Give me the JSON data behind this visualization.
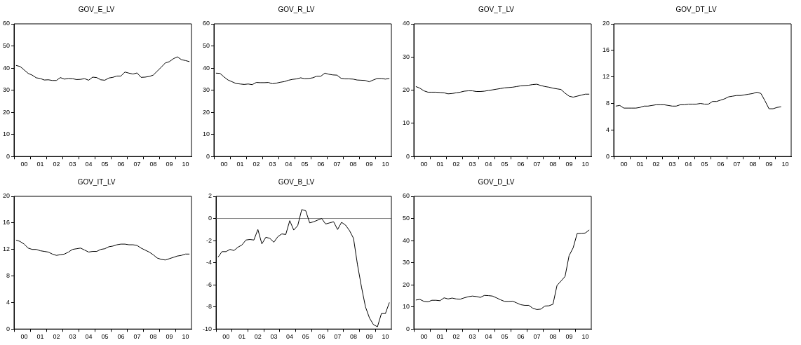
{
  "chart_data": [
    {
      "type": "line",
      "title": "GOV_E_LV",
      "color": "#000000",
      "marker": "none",
      "ylim": [
        0,
        60
      ],
      "yticks": [
        0,
        10,
        20,
        30,
        40,
        50,
        60
      ],
      "categories": [
        null,
        null,
        "00",
        null,
        null,
        null,
        "01",
        null,
        null,
        null,
        "02",
        null,
        null,
        null,
        "03",
        null,
        null,
        null,
        "04",
        null,
        null,
        null,
        "05",
        null,
        null,
        null,
        "06",
        null,
        null,
        null,
        "07",
        null,
        null,
        null,
        "08",
        null,
        null,
        null,
        "09",
        null,
        null,
        null,
        "10",
        null
      ],
      "values": [
        41.2,
        40.7,
        39.2,
        37.6,
        36.8,
        35.6,
        35.3,
        34.6,
        34.7,
        34.4,
        34.4,
        35.7,
        35.0,
        35.3,
        35.2,
        34.8,
        34.9,
        35.2,
        34.5,
        35.9,
        35.7,
        34.7,
        34.5,
        35.5,
        35.8,
        36.4,
        36.4,
        38.2,
        37.7,
        37.3,
        37.8,
        35.8,
        35.9,
        36.2,
        36.8,
        38.6,
        40.4,
        42.3,
        42.9,
        44.2,
        45.1,
        43.8,
        43.4,
        42.9
      ]
    },
    {
      "type": "line",
      "title": "GOV_R_LV",
      "color": "#000000",
      "marker": "none",
      "ylim": [
        0,
        60
      ],
      "yticks": [
        0,
        10,
        20,
        30,
        40,
        50,
        60
      ],
      "categories": [
        null,
        null,
        "00",
        null,
        null,
        null,
        "01",
        null,
        null,
        null,
        "02",
        null,
        null,
        null,
        "03",
        null,
        null,
        null,
        "04",
        null,
        null,
        null,
        "05",
        null,
        null,
        null,
        "06",
        null,
        null,
        null,
        "07",
        null,
        null,
        null,
        "08",
        null,
        null,
        null,
        "09",
        null,
        null,
        null,
        "10",
        null
      ],
      "values": [
        37.7,
        37.6,
        36.0,
        34.6,
        33.8,
        33.0,
        32.8,
        32.6,
        32.8,
        32.5,
        33.5,
        33.4,
        33.4,
        33.5,
        32.9,
        33.2,
        33.6,
        33.9,
        34.5,
        34.9,
        35.1,
        35.6,
        35.2,
        35.3,
        35.6,
        36.3,
        36.3,
        37.7,
        37.2,
        36.9,
        36.8,
        35.4,
        35.1,
        35.1,
        35.0,
        34.6,
        34.5,
        34.4,
        33.8,
        34.6,
        35.3,
        35.3,
        35.0,
        35.3
      ]
    },
    {
      "type": "line",
      "title": "GOV_T_LV",
      "color": "#000000",
      "marker": "none",
      "ylim": [
        0,
        40
      ],
      "yticks": [
        0,
        10,
        20,
        30,
        40
      ],
      "categories": [
        null,
        null,
        "00",
        null,
        null,
        null,
        "01",
        null,
        null,
        null,
        "02",
        null,
        null,
        null,
        "03",
        null,
        null,
        null,
        "04",
        null,
        null,
        null,
        "05",
        null,
        null,
        null,
        "06",
        null,
        null,
        null,
        "07",
        null,
        null,
        null,
        "08",
        null,
        null,
        null,
        "09",
        null,
        null,
        null,
        "10",
        null
      ],
      "values": [
        21.1,
        20.6,
        19.8,
        19.4,
        19.4,
        19.4,
        19.3,
        19.2,
        18.9,
        19.0,
        19.2,
        19.4,
        19.7,
        19.8,
        19.8,
        19.6,
        19.6,
        19.7,
        19.9,
        20.1,
        20.3,
        20.5,
        20.7,
        20.8,
        20.9,
        21.1,
        21.3,
        21.4,
        21.5,
        21.7,
        21.8,
        21.4,
        21.1,
        20.9,
        20.6,
        20.4,
        20.2,
        19.1,
        18.2,
        17.9,
        18.2,
        18.5,
        18.8,
        18.8
      ]
    },
    {
      "type": "line",
      "title": "GOV_DT_LV",
      "color": "#000000",
      "marker": "none",
      "ylim": [
        0,
        20
      ],
      "yticks": [
        0,
        4,
        8,
        12,
        16,
        20
      ],
      "categories": [
        null,
        null,
        "00",
        null,
        null,
        null,
        "01",
        null,
        null,
        null,
        "02",
        null,
        null,
        null,
        "03",
        null,
        null,
        null,
        "04",
        null,
        null,
        null,
        "05",
        null,
        null,
        null,
        "06",
        null,
        null,
        null,
        "07",
        null,
        null,
        null,
        "08",
        null,
        null,
        null,
        "09",
        null,
        null,
        null,
        "10",
        null
      ],
      "values": [
        7.6,
        7.7,
        7.3,
        7.3,
        7.3,
        7.3,
        7.4,
        7.6,
        7.6,
        7.7,
        7.8,
        7.8,
        7.8,
        7.7,
        7.6,
        7.6,
        7.8,
        7.8,
        7.9,
        7.9,
        7.9,
        8.0,
        7.9,
        7.9,
        8.3,
        8.3,
        8.5,
        8.7,
        9.0,
        9.1,
        9.2,
        9.2,
        9.3,
        9.4,
        9.5,
        9.7,
        9.5,
        8.4,
        7.2,
        7.2,
        7.4,
        7.5,
        null,
        null
      ]
    },
    {
      "type": "line",
      "title": "GOV_IT_LV",
      "color": "#000000",
      "marker": "none",
      "ylim": [
        0,
        20
      ],
      "yticks": [
        0,
        4,
        8,
        12,
        16,
        20
      ],
      "categories": [
        null,
        null,
        "00",
        null,
        null,
        null,
        "01",
        null,
        null,
        null,
        "02",
        null,
        null,
        null,
        "03",
        null,
        null,
        null,
        "04",
        null,
        null,
        null,
        "05",
        null,
        null,
        null,
        "06",
        null,
        null,
        null,
        "07",
        null,
        null,
        null,
        "08",
        null,
        null,
        null,
        "09",
        null,
        null,
        null,
        "10",
        null
      ],
      "values": [
        13.4,
        13.2,
        12.8,
        12.2,
        12.0,
        12.0,
        11.8,
        11.7,
        11.6,
        11.3,
        11.1,
        11.2,
        11.3,
        11.6,
        12.0,
        12.1,
        12.2,
        11.9,
        11.6,
        11.7,
        11.7,
        12.0,
        12.1,
        12.4,
        12.5,
        12.7,
        12.8,
        12.8,
        12.7,
        12.7,
        12.6,
        12.2,
        11.9,
        11.6,
        11.2,
        10.7,
        10.5,
        10.4,
        10.6,
        10.8,
        11.0,
        11.1,
        11.3,
        11.3
      ]
    },
    {
      "type": "line",
      "title": "GOV_B_LV",
      "color": "#000000",
      "marker": "none",
      "ylim": [
        -10,
        2
      ],
      "yticks": [
        -10,
        -8,
        -6,
        -4,
        -2,
        0,
        2
      ],
      "ref_lines": [
        {
          "axis": "y",
          "value": 0,
          "color": "#808080"
        }
      ],
      "categories": [
        null,
        null,
        "00",
        null,
        null,
        null,
        "01",
        null,
        null,
        null,
        "02",
        null,
        null,
        null,
        "03",
        null,
        null,
        null,
        "04",
        null,
        null,
        null,
        "05",
        null,
        null,
        null,
        "06",
        null,
        null,
        null,
        "07",
        null,
        null,
        null,
        "08",
        null,
        null,
        null,
        "09",
        null,
        null,
        null,
        "10",
        null
      ],
      "values": [
        -3.5,
        -3.0,
        -3.0,
        -2.8,
        -2.9,
        -2.6,
        -2.4,
        -1.95,
        -1.9,
        -1.95,
        -1.0,
        -2.3,
        -1.7,
        -1.8,
        -2.15,
        -1.65,
        -1.4,
        -1.45,
        -0.2,
        -1.05,
        -0.65,
        0.8,
        0.7,
        -0.4,
        -0.3,
        -0.15,
        0.0,
        -0.5,
        -0.4,
        -0.3,
        -1.0,
        -0.35,
        -0.6,
        -1.1,
        -1.8,
        -4.2,
        -6.2,
        -8.0,
        -9.0,
        -9.6,
        -9.8,
        -8.6,
        -8.6,
        -7.6
      ]
    },
    {
      "type": "line",
      "title": "GOV_D_LV",
      "color": "#000000",
      "marker": "none",
      "ylim": [
        0,
        60
      ],
      "yticks": [
        0,
        10,
        20,
        30,
        40,
        50,
        60
      ],
      "categories": [
        null,
        null,
        "00",
        null,
        null,
        null,
        "01",
        null,
        null,
        null,
        "02",
        null,
        null,
        null,
        "03",
        null,
        null,
        null,
        "04",
        null,
        null,
        null,
        "05",
        null,
        null,
        null,
        "06",
        null,
        null,
        null,
        "07",
        null,
        null,
        null,
        "08",
        null,
        null,
        null,
        "09",
        null,
        null,
        null,
        "10",
        null
      ],
      "values": [
        13.1,
        13.4,
        12.5,
        12.3,
        13.0,
        13.0,
        12.8,
        14.1,
        13.6,
        14.0,
        13.6,
        13.5,
        14.1,
        14.6,
        14.9,
        14.7,
        14.3,
        15.2,
        15.1,
        14.9,
        14.1,
        13.2,
        12.5,
        12.5,
        12.6,
        11.8,
        11.0,
        10.7,
        10.7,
        9.4,
        8.8,
        9.0,
        10.4,
        10.5,
        11.2,
        19.7,
        21.7,
        23.8,
        33.2,
        36.7,
        43.2,
        43.3,
        43.4,
        44.8
      ]
    }
  ]
}
